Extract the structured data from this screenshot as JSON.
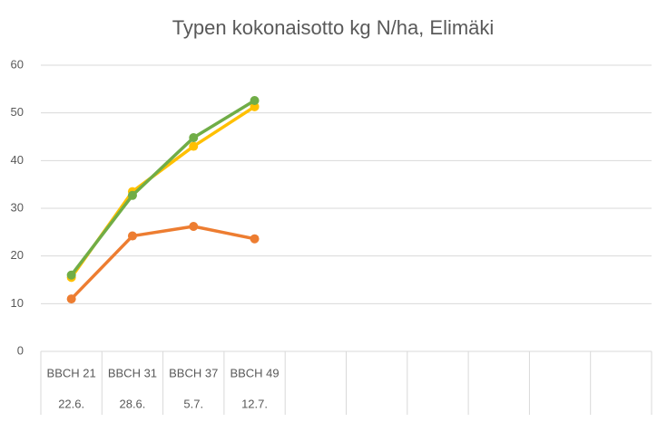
{
  "chart_data": {
    "type": "line",
    "title": "Typen kokonaisotto kg N/ha, Elimäki",
    "categories": [
      "BBCH 21",
      "BBCH 31",
      "BBCH 37",
      "BBCH 49",
      null,
      null,
      null,
      null,
      null,
      null
    ],
    "categories2": [
      "22.6.",
      "28.6.",
      "5.7.",
      "12.7.",
      null,
      null,
      null,
      null,
      null,
      null
    ],
    "series": [
      {
        "color": "#ed7d31",
        "values": [
          11,
          24.2,
          26.2,
          23.6,
          null,
          null,
          null,
          null,
          null,
          null
        ]
      },
      {
        "color": "#ffc000",
        "values": [
          15.5,
          33.5,
          43,
          51.3,
          null,
          null,
          null,
          null,
          null,
          null
        ]
      },
      {
        "color": "#70ad47",
        "values": [
          16,
          32.7,
          44.8,
          52.6,
          null,
          null,
          null,
          null,
          null,
          null
        ]
      }
    ],
    "ylim": [
      0,
      60
    ],
    "yticks": [
      0,
      10,
      20,
      30,
      40,
      50,
      60
    ],
    "grid": true
  }
}
